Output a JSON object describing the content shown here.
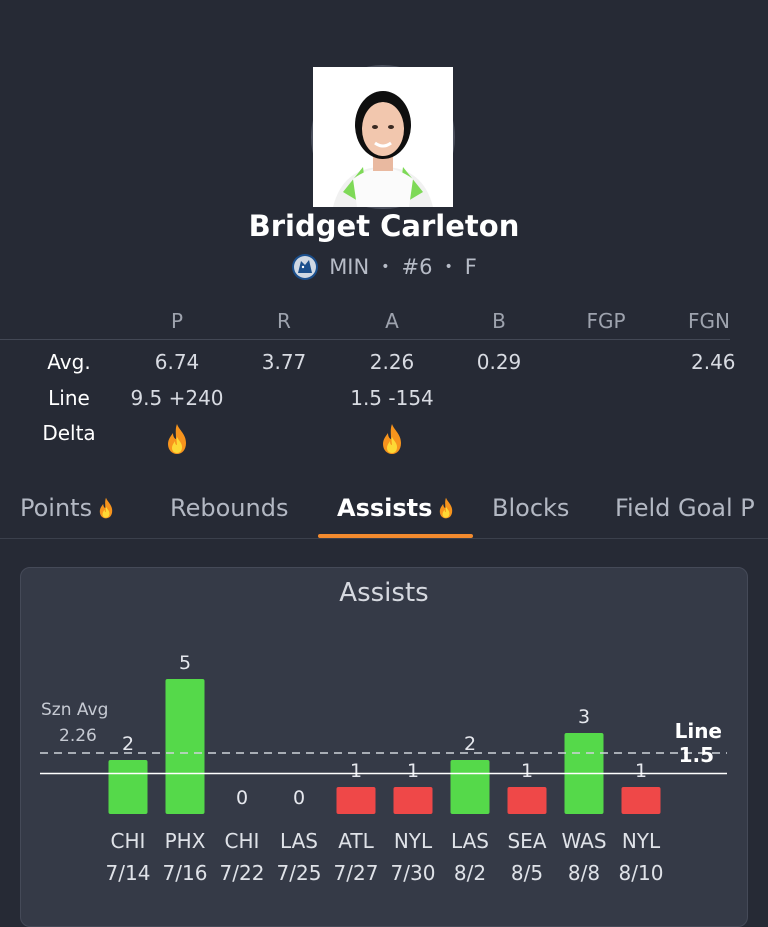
{
  "player": {
    "name": "Bridget Carleton",
    "team": "MIN",
    "number": "#6",
    "position": "F",
    "team_logo_icon": "timberwolf-logo-icon"
  },
  "stats": {
    "columns": [
      "P",
      "R",
      "A",
      "B",
      "FGP",
      "FGN"
    ],
    "rows": {
      "avg": {
        "label": "Avg.",
        "values": [
          "6.74",
          "3.77",
          "2.26",
          "0.29",
          "",
          "2.46"
        ]
      },
      "line": {
        "label": "Line",
        "values": [
          "9.5 +240",
          "",
          "1.5 -154",
          "",
          "",
          ""
        ]
      },
      "delta": {
        "label": "Delta",
        "hot": [
          true,
          false,
          true,
          false,
          false,
          false
        ],
        "icon": "fire-icon"
      }
    }
  },
  "tabs": [
    {
      "label": "Points",
      "hot": true,
      "active": false
    },
    {
      "label": "Rebounds",
      "hot": false,
      "active": false
    },
    {
      "label": "Assists",
      "hot": true,
      "active": true
    },
    {
      "label": "Blocks",
      "hot": false,
      "active": false
    },
    {
      "label": "Field Goal P",
      "hot": false,
      "active": false
    }
  ],
  "colors": {
    "accent": "#f28a2e",
    "over": "#55d94a",
    "under": "#ef4848",
    "background": "#262a35",
    "card": "#353a47"
  },
  "chart_data": {
    "type": "bar",
    "title": "Assists",
    "categories": [
      "CHI",
      "PHX",
      "CHI",
      "LAS",
      "ATL",
      "NYL",
      "LAS",
      "SEA",
      "WAS",
      "NYL"
    ],
    "dates": [
      "7/14",
      "7/16",
      "7/22",
      "7/25",
      "7/27",
      "7/30",
      "8/2",
      "8/5",
      "8/8",
      "8/10"
    ],
    "values": [
      2,
      5,
      0,
      0,
      1,
      1,
      2,
      1,
      3,
      1
    ],
    "season_avg": {
      "label": "Szn Avg",
      "value": "2.26"
    },
    "line": {
      "label": "Line",
      "value": "1.5"
    },
    "ylim": [
      0,
      5
    ]
  }
}
